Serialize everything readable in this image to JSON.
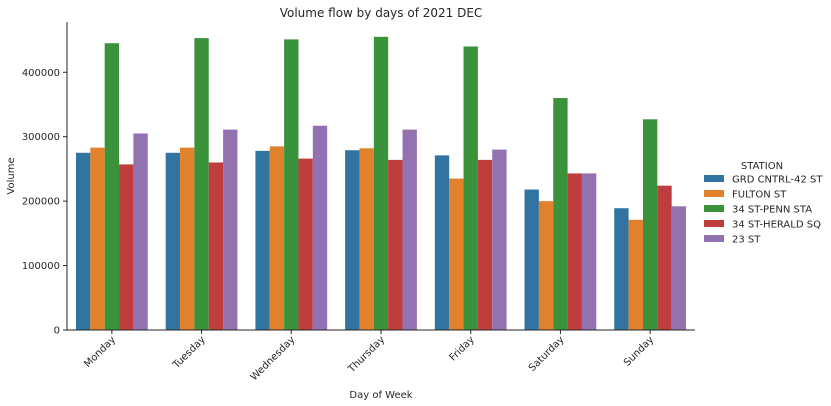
{
  "chart_data": {
    "type": "bar",
    "title": "Volume flow by days of 2021 DEC",
    "xlabel": "Day of Week",
    "ylabel": "Volume",
    "categories": [
      "Monday",
      "Tuesday",
      "Wednesday",
      "Thursday",
      "Friday",
      "Saturday",
      "Sunday"
    ],
    "ylim": [
      0,
      478000
    ],
    "yticks": [
      0,
      100000,
      200000,
      300000,
      400000
    ],
    "ytick_labels": [
      "0",
      "100000",
      "200000",
      "300000",
      "400000"
    ],
    "grid": false,
    "legend_title": "STATION",
    "legend_position": "right",
    "series": [
      {
        "name": "GRD CNTRL-42 ST",
        "color": "#3274a1",
        "values": [
          275000,
          275000,
          278000,
          279000,
          271000,
          218000,
          189000
        ]
      },
      {
        "name": "FULTON ST",
        "color": "#e1812c",
        "values": [
          283000,
          283000,
          285000,
          282000,
          235000,
          200000,
          171000
        ]
      },
      {
        "name": "34 ST-PENN STA",
        "color": "#3a923a",
        "values": [
          445000,
          453000,
          451000,
          455000,
          440000,
          360000,
          327000
        ]
      },
      {
        "name": "34 ST-HERALD SQ",
        "color": "#c03d3e",
        "values": [
          257000,
          260000,
          266000,
          264000,
          264000,
          243000,
          224000
        ]
      },
      {
        "name": "23 ST",
        "color": "#9372b2",
        "values": [
          305000,
          311000,
          317000,
          311000,
          280000,
          243000,
          192000
        ]
      }
    ]
  }
}
